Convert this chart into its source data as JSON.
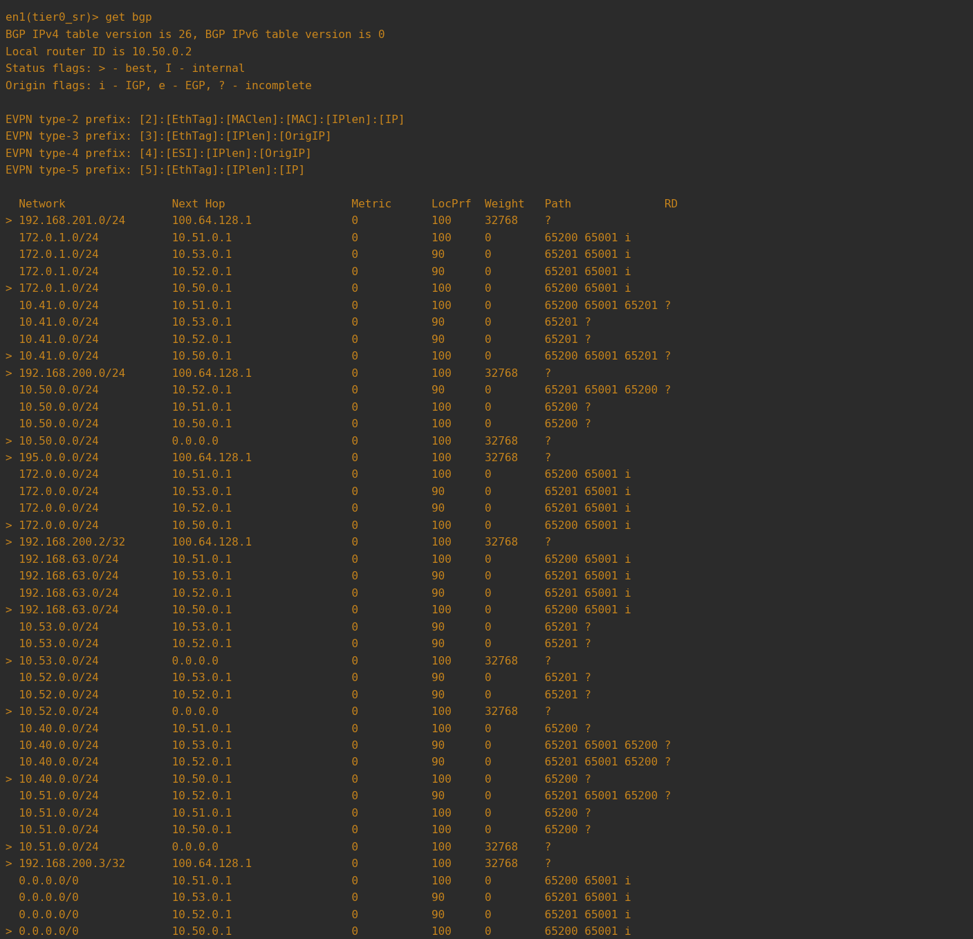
{
  "bg_color": "#2b2b2b",
  "text_color": "#c8851c",
  "font_size": 11.5,
  "figsize": [
    14.07,
    13.58
  ],
  "dpi": 100,
  "lines": [
    "en1(tier0_sr)> get bgp",
    "BGP IPv4 table version is 26, BGP IPv6 table version is 0",
    "Local router ID is 10.50.0.2",
    "Status flags: > - best, I - internal",
    "Origin flags: i - IGP, e - EGP, ? - incomplete",
    "",
    "EVPN type-2 prefix: [2]:[EthTag]:[MAClen]:[MAC]:[IPlen]:[IP]",
    "EVPN type-3 prefix: [3]:[EthTag]:[IPlen]:[OrigIP]",
    "EVPN type-4 prefix: [4]:[ESI]:[IPlen]:[OrigIP]",
    "EVPN type-5 prefix: [5]:[EthTag]:[IPlen]:[IP]",
    "",
    "  Network                Next Hop                   Metric      LocPrf  Weight   Path              RD",
    "> 192.168.201.0/24       100.64.128.1               0           100     32768    ?",
    "  172.0.1.0/24           10.51.0.1                  0           100     0        65200 65001 i",
    "  172.0.1.0/24           10.53.0.1                  0           90      0        65201 65001 i",
    "  172.0.1.0/24           10.52.0.1                  0           90      0        65201 65001 i",
    "> 172.0.1.0/24           10.50.0.1                  0           100     0        65200 65001 i",
    "  10.41.0.0/24           10.51.0.1                  0           100     0        65200 65001 65201 ?",
    "  10.41.0.0/24           10.53.0.1                  0           90      0        65201 ?",
    "  10.41.0.0/24           10.52.0.1                  0           90      0        65201 ?",
    "> 10.41.0.0/24           10.50.0.1                  0           100     0        65200 65001 65201 ?",
    "> 192.168.200.0/24       100.64.128.1               0           100     32768    ?",
    "  10.50.0.0/24           10.52.0.1                  0           90      0        65201 65001 65200 ?",
    "  10.50.0.0/24           10.51.0.1                  0           100     0        65200 ?",
    "  10.50.0.0/24           10.50.0.1                  0           100     0        65200 ?",
    "> 10.50.0.0/24           0.0.0.0                    0           100     32768    ?",
    "> 195.0.0.0/24           100.64.128.1               0           100     32768    ?",
    "  172.0.0.0/24           10.51.0.1                  0           100     0        65200 65001 i",
    "  172.0.0.0/24           10.53.0.1                  0           90      0        65201 65001 i",
    "  172.0.0.0/24           10.52.0.1                  0           90      0        65201 65001 i",
    "> 172.0.0.0/24           10.50.0.1                  0           100     0        65200 65001 i",
    "> 192.168.200.2/32       100.64.128.1               0           100     32768    ?",
    "  192.168.63.0/24        10.51.0.1                  0           100     0        65200 65001 i",
    "  192.168.63.0/24        10.53.0.1                  0           90      0        65201 65001 i",
    "  192.168.63.0/24        10.52.0.1                  0           90      0        65201 65001 i",
    "> 192.168.63.0/24        10.50.0.1                  0           100     0        65200 65001 i",
    "  10.53.0.0/24           10.53.0.1                  0           90      0        65201 ?",
    "  10.53.0.0/24           10.52.0.1                  0           90      0        65201 ?",
    "> 10.53.0.0/24           0.0.0.0                    0           100     32768    ?",
    "  10.52.0.0/24           10.53.0.1                  0           90      0        65201 ?",
    "  10.52.0.0/24           10.52.0.1                  0           90      0        65201 ?",
    "> 10.52.0.0/24           0.0.0.0                    0           100     32768    ?",
    "  10.40.0.0/24           10.51.0.1                  0           100     0        65200 ?",
    "  10.40.0.0/24           10.53.0.1                  0           90      0        65201 65001 65200 ?",
    "  10.40.0.0/24           10.52.0.1                  0           90      0        65201 65001 65200 ?",
    "> 10.40.0.0/24           10.50.0.1                  0           100     0        65200 ?",
    "  10.51.0.0/24           10.52.0.1                  0           90      0        65201 65001 65200 ?",
    "  10.51.0.0/24           10.51.0.1                  0           100     0        65200 ?",
    "  10.51.0.0/24           10.50.0.1                  0           100     0        65200 ?",
    "> 10.51.0.0/24           0.0.0.0                    0           100     32768    ?",
    "> 192.168.200.3/32       100.64.128.1               0           100     32768    ?",
    "  0.0.0.0/0              10.51.0.1                  0           100     0        65200 65001 i",
    "  0.0.0.0/0              10.53.0.1                  0           90      0        65201 65001 i",
    "  0.0.0.0/0              10.52.0.1                  0           90      0        65201 65001 i",
    "> 0.0.0.0/0              10.50.0.1                  0           100     0        65200 65001 i"
  ]
}
